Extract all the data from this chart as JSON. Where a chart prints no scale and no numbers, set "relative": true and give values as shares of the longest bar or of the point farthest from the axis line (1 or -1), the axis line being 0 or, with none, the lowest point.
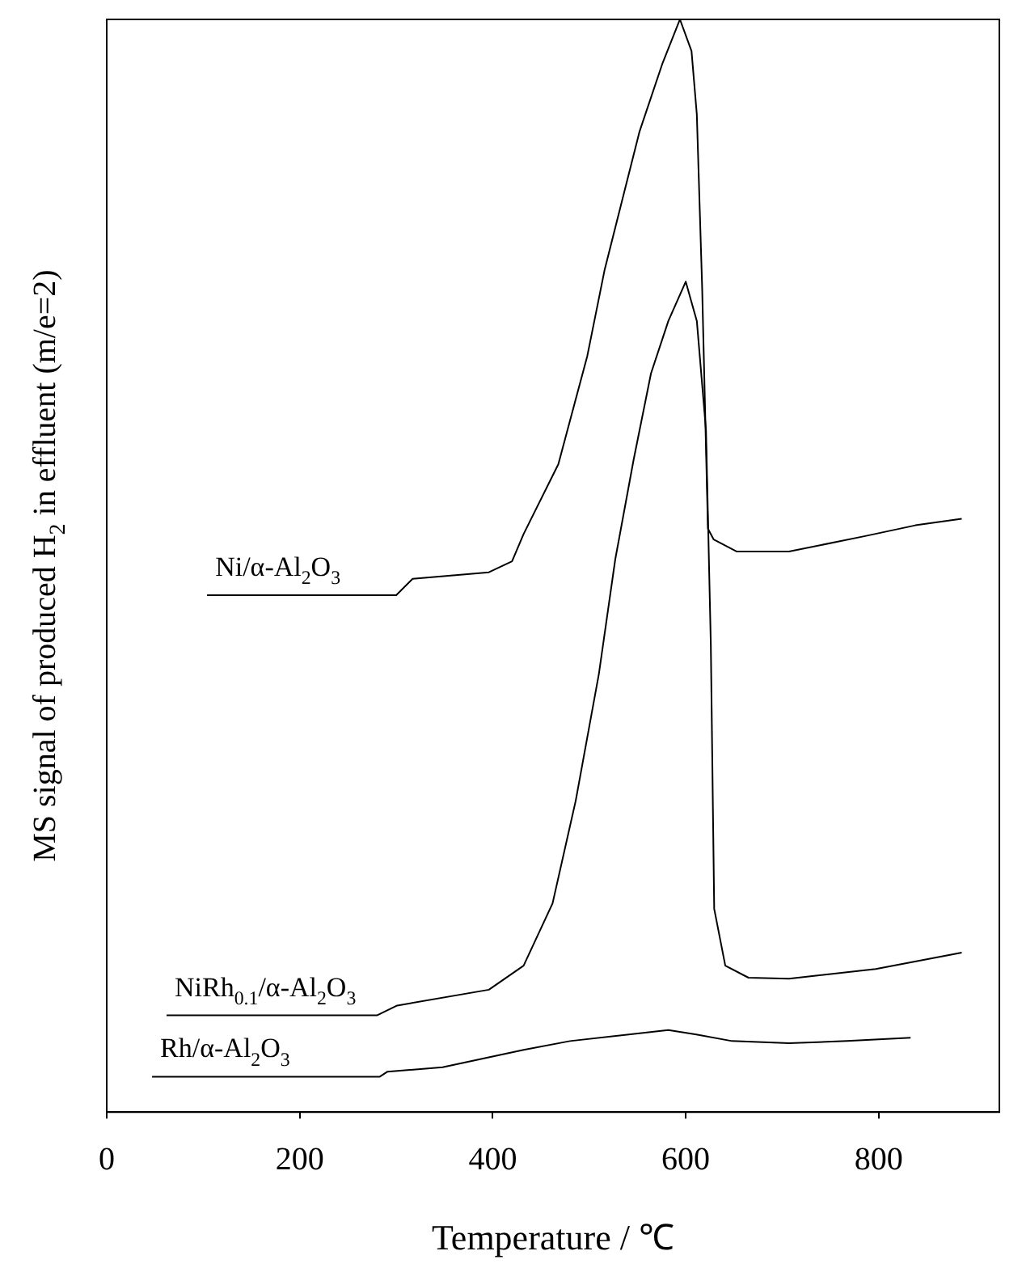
{
  "chart_data": {
    "type": "line",
    "relative": true,
    "xlabel": "Temperature / ℃",
    "ylabel": "MS signal of produced H$_{2}$ in effluent (m/e=2)",
    "xlim": [
      0,
      925
    ],
    "xticks": [
      0,
      200,
      400,
      600,
      800
    ],
    "grid": false,
    "legend": false,
    "marker": "none",
    "line_style": "solid",
    "series": [
      {
        "name": "Ni/α-Al$_{2}$O$_{3}$",
        "color": "#000000",
        "x": [
          104,
          300,
          317,
          396,
          420,
          432,
          468,
          498,
          516,
          534,
          552,
          576,
          594,
          606,
          611.5,
          617,
          623,
          629,
          653,
          707,
          785,
          838,
          886
        ],
        "values": [
          0.473,
          0.473,
          0.488,
          0.494,
          0.504,
          0.529,
          0.593,
          0.692,
          0.771,
          0.834,
          0.897,
          0.96,
          1,
          0.971,
          0.913,
          0.755,
          0.534,
          0.524,
          0.513,
          0.513,
          0.527,
          0.537,
          0.543
        ]
      },
      {
        "name": "NiRh$_{0.1}$/α-Al$_{2}$O$_{3}$",
        "color": "#000000",
        "x": [
          62,
          280,
          301,
          396,
          432,
          462,
          486,
          510,
          527,
          546,
          564,
          582,
          600,
          611.5,
          621,
          626,
          629.5,
          641,
          665,
          707,
          797,
          886
        ],
        "values": [
          0.0885,
          0.0885,
          0.0975,
          0.112,
          0.134,
          0.191,
          0.285,
          0.401,
          0.506,
          0.597,
          0.676,
          0.724,
          0.76,
          0.724,
          0.624,
          0.428,
          0.186,
          0.134,
          0.123,
          0.122,
          0.131,
          0.146
        ]
      },
      {
        "name": "Rh/α-Al$_{2}$O$_{3}$",
        "color": "#000000",
        "x": [
          47,
          283,
          291,
          348,
          432,
          480,
          582,
          611,
          648,
          707,
          767,
          833
        ],
        "values": [
          0.0324,
          0.0324,
          0.037,
          0.041,
          0.057,
          0.065,
          0.075,
          0.071,
          0.065,
          0.063,
          0.065,
          0.068
        ]
      }
    ]
  }
}
